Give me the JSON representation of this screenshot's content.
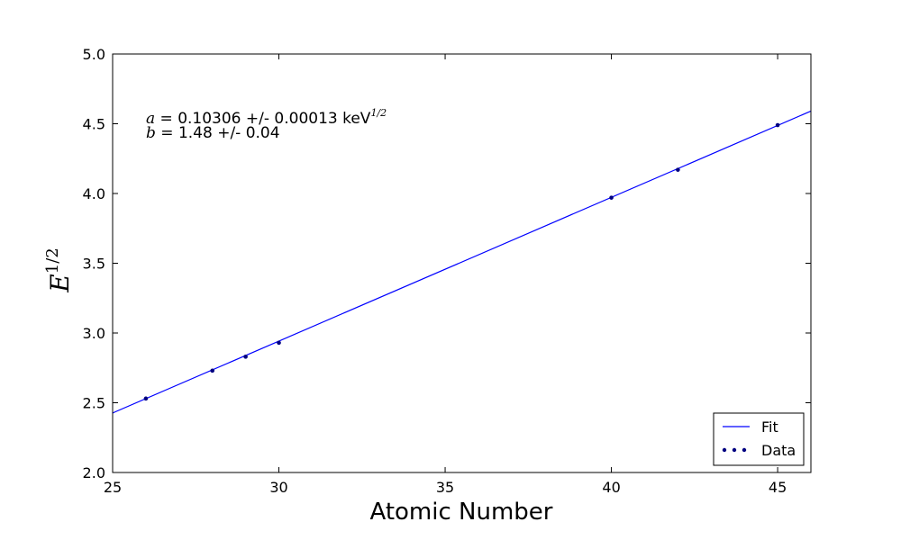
{
  "chart_data": {
    "type": "scatter",
    "xlabel": "Atomic Number",
    "ylabel_base": "E",
    "ylabel_sup": "1/2",
    "xlim": [
      25,
      46
    ],
    "ylim": [
      2.0,
      5.0
    ],
    "xticks": [
      25,
      30,
      35,
      40,
      45
    ],
    "yticks": [
      2.0,
      2.5,
      3.0,
      3.5,
      4.0,
      4.5,
      5.0
    ],
    "xtick_labels": [
      "25",
      "30",
      "35",
      "40",
      "45"
    ],
    "ytick_labels": [
      "2.0",
      "2.5",
      "3.0",
      "3.5",
      "4.0",
      "4.5",
      "5.0"
    ],
    "grid": false,
    "legend_position": "lower-right",
    "series": [
      {
        "name": "Data",
        "kind": "scatter",
        "color": "#000080",
        "x": [
          26,
          28,
          29,
          30,
          40,
          42,
          45
        ],
        "y": [
          2.53,
          2.73,
          2.83,
          2.93,
          3.97,
          4.17,
          4.49
        ]
      },
      {
        "name": "Fit",
        "kind": "line",
        "color": "#0000ff",
        "slope": 0.10306,
        "intercept": -0.15
      }
    ],
    "annotations": {
      "line1": {
        "var": "a",
        "text": " = 0.10306 +/- 0.00013 keV",
        "sup": "1/2"
      },
      "line2": {
        "var": "b",
        "text": " = 1.48 +/- 0.04"
      }
    }
  }
}
